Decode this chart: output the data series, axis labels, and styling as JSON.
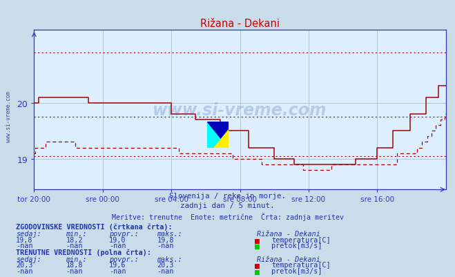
{
  "title": "Rižana - Dekani",
  "subtitle1": "Slovenija / reke in morje.",
  "subtitle2": "zadnji dan / 5 minut.",
  "subtitle3": "Meritve: trenutne  Enote: metrične  Črta: zadnja meritev",
  "bg_color": "#c8dcea",
  "plot_bg_color": "#ddeeff",
  "grid_color": "#aac0d0",
  "line_color": "#aa0000",
  "axis_color": "#3333cc",
  "text_color": "#2233aa",
  "title_color": "#cc0000",
  "watermark_color": "#4466aa",
  "watermark_text": "www.si-vreme.com",
  "side_watermark": "www.si-vreme.com",
  "x_tick_labels": [
    "tor 20:00",
    "sre 00:00",
    "sre 04:00",
    "sre 08:00",
    "sre 12:00",
    "sre 16:00"
  ],
  "x_tick_positions": [
    0,
    48,
    96,
    144,
    192,
    240
  ],
  "total_points": 289,
  "ylim_low": 18.45,
  "ylim_high": 21.3,
  "yticks": [
    19,
    20
  ],
  "dotted_y1": 20.9,
  "dotted_y2": 19.75,
  "dotted_y3": 19.05,
  "legend_text1": "ZGODOVINSKE VREDNOSTI (črtkana črta):",
  "legend_text2": "TRENUTNE VREDNOSTI (polna črta):",
  "col_headers": [
    "sedaj:",
    "min.:",
    "povpr.:",
    "maks.:"
  ],
  "station_name": "Rižana - Dekani",
  "label_temp": "temperatura[C]",
  "label_flow": "pretok[m3/s]",
  "hist_temp_vals": [
    "19,8",
    "18,2",
    "19,0",
    "19,8"
  ],
  "hist_flow_vals": [
    "-nan",
    "-nan",
    "-nan",
    "-nan"
  ],
  "curr_temp_vals": [
    "20,3",
    "18,8",
    "19,6",
    "20,3"
  ],
  "curr_flow_vals": [
    "-nan",
    "-nan",
    "-nan",
    "-nan"
  ],
  "color_temp": "#cc0000",
  "color_flow": "#00cc00"
}
